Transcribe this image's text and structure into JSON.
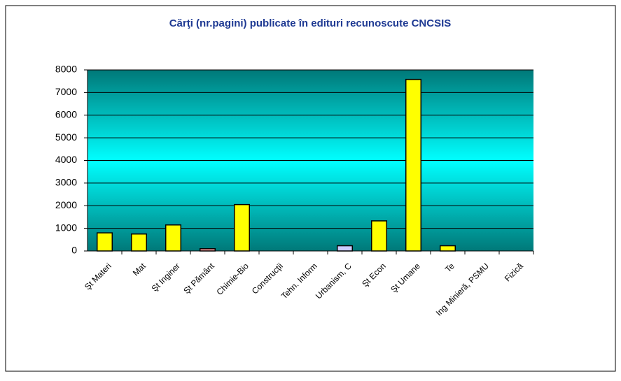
{
  "chart_data": {
    "type": "bar",
    "title": "Cărţi (nr.pagini) publicate în edituri recunoscute CNCSIS",
    "categories": [
      "Şt Materi",
      "Mat",
      "Şt Inginer",
      "Şt Pământ",
      "Chimie-Bio",
      "Construcţii",
      "Tehn. Inform",
      "Urbanism, C",
      "Şt Econ",
      "Şt Umane",
      "Te",
      "Ing Minieră, PSMU",
      "Fizică"
    ],
    "values": [
      800,
      750,
      1150,
      100,
      2050,
      0,
      0,
      230,
      1330,
      7580,
      230,
      0,
      0
    ],
    "colors": [
      "#ffff00",
      "#ffff00",
      "#ffff00",
      "#ff9999",
      "#ffff00",
      "#ffff00",
      "#ffff00",
      "#ccccff",
      "#ffff00",
      "#ffff00",
      "#ffff00",
      "#ffff00",
      "#ffff00"
    ],
    "ylim": [
      0,
      8000
    ],
    "yticks": [
      0,
      1000,
      2000,
      3000,
      4000,
      5000,
      6000,
      7000,
      8000
    ],
    "grid": true
  }
}
